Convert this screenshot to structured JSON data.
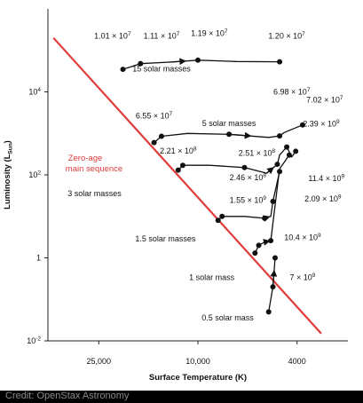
{
  "chart_data": {
    "type": "line",
    "title": "",
    "xlabel": "Surface Temperature (K)",
    "ylabel": "Luminosity (L",
    "ylabel_sub": "Sun",
    "ylabel_close": ")",
    "x_scale": "log (reversed)",
    "y_scale": "log",
    "xlim": [
      40000,
      2500
    ],
    "ylim": [
      0.01,
      1000000
    ],
    "x_ticks": [
      {
        "value": 25000,
        "label": "25,000"
      },
      {
        "value": 10000,
        "label": "10,000"
      },
      {
        "value": 4000,
        "label": "4000"
      }
    ],
    "y_ticks": [
      {
        "value": 0.01,
        "base": "10",
        "exp": "-2"
      },
      {
        "value": 1,
        "base": "1",
        "exp": ""
      },
      {
        "value": 100,
        "base": "10",
        "exp": "2"
      },
      {
        "value": 10000,
        "base": "10",
        "exp": "4"
      }
    ],
    "zams": {
      "label_line1": "Zero-age",
      "label_line2": "main sequence",
      "color": "#e03b3b",
      "points": [
        [
          38000,
          200000
        ],
        [
          3200,
          0.015
        ]
      ]
    },
    "series": [
      {
        "name": "15 solar masses",
        "points": [
          [
            20000,
            35000
          ],
          [
            17000,
            48000
          ],
          [
            13000,
            52000
          ],
          [
            10000,
            58000
          ],
          [
            7000,
            54000
          ],
          [
            4700,
            53000
          ]
        ]
      },
      {
        "name": "5 solar masses",
        "points": [
          [
            15000,
            600
          ],
          [
            14000,
            850
          ],
          [
            11000,
            1000
          ],
          [
            7500,
            950
          ],
          [
            5200,
            800
          ],
          [
            4700,
            870
          ],
          [
            4500,
            1050
          ],
          [
            3800,
            1600
          ]
        ]
      },
      {
        "name": "3 solar masses",
        "points": [
          [
            12000,
            130
          ],
          [
            11500,
            170
          ],
          [
            9000,
            170
          ],
          [
            6500,
            150
          ],
          [
            5300,
            110
          ],
          [
            4800,
            180
          ],
          [
            4700,
            300
          ],
          [
            4400,
            470
          ],
          [
            4200,
            270
          ],
          [
            4050,
            370
          ]
        ]
      },
      {
        "name": "1.5 solar masses",
        "points": [
          [
            8300,
            8
          ],
          [
            8000,
            10
          ],
          [
            6500,
            10
          ],
          [
            5400,
            9
          ],
          [
            5100,
            10
          ],
          [
            5000,
            23
          ],
          [
            4700,
            120
          ]
        ]
      },
      {
        "name": "1 solar mass",
        "points": [
          [
            5900,
            1.3
          ],
          [
            5700,
            2
          ],
          [
            5400,
            2.4
          ],
          [
            5100,
            2.6
          ],
          [
            4700,
            140
          ],
          [
            4300,
            300
          ]
        ]
      },
      {
        "name": "0.5 solar mass",
        "points": [
          [
            5200,
            0.05
          ],
          [
            5000,
            0.2
          ],
          [
            4900,
            1.0
          ]
        ]
      }
    ],
    "annotations": [
      {
        "text": "1.01 × 10",
        "exp": "7",
        "t": 22000,
        "l": 190000
      },
      {
        "text": "1.11 × 10",
        "exp": "7",
        "t": 14000,
        "l": 190000
      },
      {
        "text": "1.19 × 10",
        "exp": "7",
        "t": 9000,
        "l": 220000
      },
      {
        "text": "1.20 × 10",
        "exp": "7",
        "t": 4400,
        "l": 190000
      },
      {
        "text": "6.98 × 10",
        "exp": "7",
        "t": 4200,
        "l": 8600
      },
      {
        "text": "7.02 × 10",
        "exp": "7",
        "t": 3100,
        "l": 5600
      },
      {
        "text": "6.55 × 10",
        "exp": "7",
        "t": 15000,
        "l": 2300
      },
      {
        "text": "2.39 × 10",
        "exp": "9",
        "t": 3200,
        "l": 1450
      },
      {
        "text": "2.21 × 10",
        "exp": "8",
        "t": 12000,
        "l": 330
      },
      {
        "text": "2.51 × 10",
        "exp": "8",
        "t": 5800,
        "l": 290
      },
      {
        "text": "2.46 × 10",
        "exp": "8",
        "t": 6300,
        "l": 74
      },
      {
        "text": "11.4 × 10",
        "exp": "9",
        "t": 3050,
        "l": 71
      },
      {
        "text": "1.55 × 10",
        "exp": "9",
        "t": 6300,
        "l": 21
      },
      {
        "text": "2.09 × 10",
        "exp": "9",
        "t": 3150,
        "l": 23
      },
      {
        "text": "10.4 × 10",
        "exp": "9",
        "t": 3800,
        "l": 2.7
      },
      {
        "text": "7 × 10",
        "exp": "9",
        "t": 3800,
        "l": 0.29
      }
    ],
    "mass_labels": [
      {
        "text": "15 solar masses",
        "t": 14000,
        "l": 31000
      },
      {
        "text": "5 solar masses",
        "t": 7500,
        "l": 1500
      },
      {
        "text": "3 solar masses",
        "t": 26000,
        "l": 31
      },
      {
        "text": "1.5 solar masses",
        "t": 13500,
        "l": 2.5
      },
      {
        "text": "1 solar mass",
        "t": 8800,
        "l": 0.29
      },
      {
        "text": "0.5 solar mass",
        "t": 7600,
        "l": 0.031
      }
    ],
    "grid": false,
    "legend": "none"
  },
  "credit": "Credit: OpenStax Astronomy"
}
